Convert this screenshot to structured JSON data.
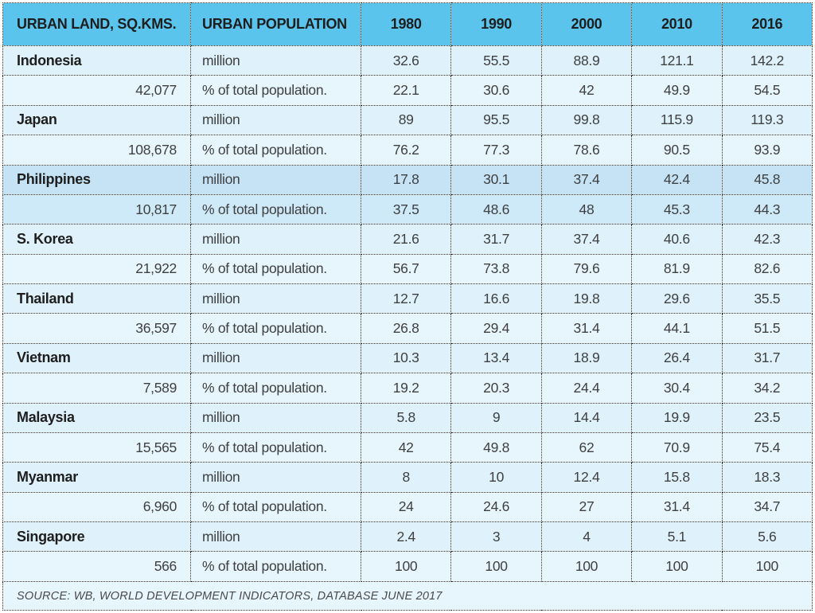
{
  "chart_data": {
    "type": "table",
    "header": {
      "col1": "URBAN LAND, SQ.KMS.",
      "col2": "URBAN POPULATION",
      "years": [
        "1980",
        "1990",
        "2000",
        "2010",
        "2016"
      ]
    },
    "row_labels": {
      "million": "million",
      "percent": "% of total population."
    },
    "rows": [
      {
        "name": "Indonesia",
        "land_sq_kms": "42,077",
        "million": [
          "32.6",
          "55.5",
          "88.9",
          "121.1",
          "142.2"
        ],
        "percent_of_total": [
          "22.1",
          "30.6",
          "42",
          "49.9",
          "54.5"
        ],
        "highlight": false
      },
      {
        "name": "Japan",
        "land_sq_kms": "108,678",
        "million": [
          "89",
          "95.5",
          "99.8",
          "115.9",
          "119.3"
        ],
        "percent_of_total": [
          "76.2",
          "77.3",
          "78.6",
          "90.5",
          "93.9"
        ],
        "highlight": false
      },
      {
        "name": "Philippines",
        "land_sq_kms": "10,817",
        "million": [
          "17.8",
          "30.1",
          "37.4",
          "42.4",
          "45.8"
        ],
        "percent_of_total": [
          "37.5",
          "48.6",
          "48",
          "45.3",
          "44.3"
        ],
        "highlight": true
      },
      {
        "name": "S. Korea",
        "land_sq_kms": "21,922",
        "million": [
          "21.6",
          "31.7",
          "37.4",
          "40.6",
          "42.3"
        ],
        "percent_of_total": [
          "56.7",
          "73.8",
          "79.6",
          "81.9",
          "82.6"
        ],
        "highlight": false
      },
      {
        "name": "Thailand",
        "land_sq_kms": "36,597",
        "million": [
          "12.7",
          "16.6",
          "19.8",
          "29.6",
          "35.5"
        ],
        "percent_of_total": [
          "26.8",
          "29.4",
          "31.4",
          "44.1",
          "51.5"
        ],
        "highlight": false
      },
      {
        "name": "Vietnam",
        "land_sq_kms": "7,589",
        "million": [
          "10.3",
          "13.4",
          "18.9",
          "26.4",
          "31.7"
        ],
        "percent_of_total": [
          "19.2",
          "20.3",
          "24.4",
          "30.4",
          "34.2"
        ],
        "highlight": false
      },
      {
        "name": "Malaysia",
        "land_sq_kms": "15,565",
        "million": [
          "5.8",
          "9",
          "14.4",
          "19.9",
          "23.5"
        ],
        "percent_of_total": [
          "42",
          "49.8",
          "62",
          "70.9",
          "75.4"
        ],
        "highlight": false
      },
      {
        "name": "Myanmar",
        "land_sq_kms": "6,960",
        "million": [
          "8",
          "10",
          "12.4",
          "15.8",
          "18.3"
        ],
        "percent_of_total": [
          "24",
          "24.6",
          "27",
          "31.4",
          "34.7"
        ],
        "highlight": false
      },
      {
        "name": "Singapore",
        "land_sq_kms": "566",
        "million": [
          "2.4",
          "3",
          "4",
          "5.1",
          "5.6"
        ],
        "percent_of_total": [
          "100",
          "100",
          "100",
          "100",
          "100"
        ],
        "highlight": false
      }
    ],
    "source": "SOURCE: WB, WORLD DEVELOPMENT INDICATORS, DATABASE JUNE 2017"
  },
  "colors": {
    "page_bg": "#ffffff",
    "header_bg": "#5bc4ec",
    "row_bg_million": "#dff1fa",
    "row_bg_percent": "#e7f5fc",
    "highlight_bg_million": "#c5e3f5",
    "highlight_bg_percent": "#cee9f8",
    "border": "#2b2b2b",
    "heading_text": "#1e1e1e",
    "value_text": "#3f4041",
    "source_text": "#4a4a4c"
  }
}
